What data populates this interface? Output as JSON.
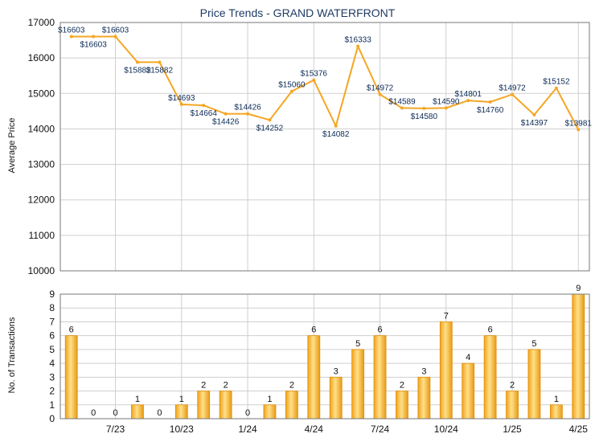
{
  "chart_data": [
    {
      "type": "line",
      "title": "Price Trends - GRAND WATERFRONT",
      "ylabel": "Average Price",
      "ylim": [
        10000,
        17000
      ],
      "yticks": [
        10000,
        11000,
        12000,
        13000,
        14000,
        15000,
        16000,
        17000
      ],
      "grid": true,
      "color": "#f5a623",
      "x": [
        "2023-05",
        "2023-06",
        "2023-07",
        "2023-08",
        "2023-09",
        "2023-10",
        "2023-11",
        "2023-12",
        "2024-01",
        "2024-02",
        "2024-03",
        "2024-04",
        "2024-05",
        "2024-06",
        "2024-07",
        "2024-08",
        "2024-09",
        "2024-10",
        "2024-11",
        "2024-12",
        "2025-01",
        "2025-02",
        "2025-03",
        "2025-04"
      ],
      "values": [
        16603,
        16603,
        16603,
        15882,
        15882,
        14693,
        14664,
        14426,
        14426,
        14252,
        15060,
        15376,
        14082,
        16333,
        14972,
        14589,
        14580,
        14590,
        14801,
        14760,
        14972,
        14397,
        15152,
        13981
      ],
      "value_labels": [
        "$16603",
        "$16603",
        "$16603",
        "$15882",
        "$15882",
        "$14693",
        "$14664",
        "$14426",
        "$14426",
        "$14252",
        "$15060",
        "$15376",
        "$14082",
        "$16333",
        "$14972",
        "$14589",
        "$14580",
        "$14590",
        "$14801",
        "$14760",
        "$14972",
        "$14397",
        "$15152",
        "$13981"
      ]
    },
    {
      "type": "bar",
      "ylabel": "No. of Transactions",
      "ylim": [
        0,
        9
      ],
      "yticks": [
        0,
        1,
        2,
        3,
        4,
        5,
        6,
        7,
        8,
        9
      ],
      "grid": true,
      "color": "#f5a623",
      "categories": [
        "2023-05",
        "2023-06",
        "2023-07",
        "2023-08",
        "2023-09",
        "2023-10",
        "2023-11",
        "2023-12",
        "2024-01",
        "2024-02",
        "2024-03",
        "2024-04",
        "2024-05",
        "2024-06",
        "2024-07",
        "2024-08",
        "2024-09",
        "2024-10",
        "2024-11",
        "2024-12",
        "2025-01",
        "2025-02",
        "2025-03",
        "2025-04"
      ],
      "values": [
        6,
        0,
        0,
        1,
        0,
        1,
        2,
        2,
        0,
        1,
        2,
        6,
        3,
        5,
        6,
        2,
        3,
        7,
        4,
        6,
        2,
        5,
        1,
        9
      ],
      "xtick_labels": [
        {
          "index": 2,
          "label": "7/23"
        },
        {
          "index": 5,
          "label": "10/23"
        },
        {
          "index": 8,
          "label": "1/24"
        },
        {
          "index": 11,
          "label": "4/24"
        },
        {
          "index": 14,
          "label": "7/24"
        },
        {
          "index": 17,
          "label": "10/24"
        },
        {
          "index": 20,
          "label": "1/25"
        },
        {
          "index": 23,
          "label": "4/25"
        }
      ]
    }
  ]
}
